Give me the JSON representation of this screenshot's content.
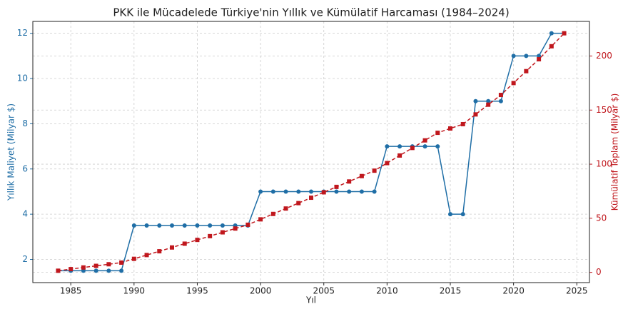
{
  "chart_data": {
    "type": "line",
    "title": "PKK ile Mücadelede Türkiye'nin Yıllık ve Kümülatif Harcaması (1984–2024)",
    "xlabel": "Yıl",
    "ylabel": "Yıllık Maliyet (Milyar $)",
    "y2label": "Kümülatif Toplam (Milyar $)",
    "x": [
      1984,
      1985,
      1986,
      1987,
      1988,
      1989,
      1990,
      1991,
      1992,
      1993,
      1994,
      1995,
      1996,
      1997,
      1998,
      1999,
      2000,
      2001,
      2002,
      2003,
      2004,
      2005,
      2006,
      2007,
      2008,
      2009,
      2010,
      2011,
      2012,
      2013,
      2014,
      2015,
      2016,
      2017,
      2018,
      2019,
      2020,
      2021,
      2022,
      2023,
      2024
    ],
    "series": [
      {
        "color": "#1f6ea6",
        "values": [
          1.5,
          1.5,
          1.5,
          1.5,
          1.5,
          1.5,
          3.5,
          3.5,
          3.5,
          3.5,
          3.5,
          3.5,
          3.5,
          3.5,
          3.5,
          3.5,
          5,
          5,
          5,
          5,
          5,
          5,
          5,
          5,
          5,
          5,
          7,
          7,
          7,
          7,
          7,
          4,
          4,
          9,
          9,
          9,
          11,
          11,
          11,
          12,
          12
        ]
      },
      {
        "color": "#c0171d",
        "axis": "y2",
        "values": [
          1.5,
          3,
          4.5,
          6,
          7.5,
          9,
          12.5,
          16,
          19.5,
          23,
          26.5,
          30,
          33.5,
          37,
          40.5,
          44,
          49,
          54,
          59,
          64,
          69,
          74,
          79,
          84,
          89,
          94,
          101,
          108,
          115,
          122,
          129,
          133,
          137,
          146,
          155,
          164,
          175,
          186,
          197,
          209,
          221
        ]
      }
    ],
    "xlim": [
      1982,
      2026
    ],
    "xticks": [
      1985,
      1990,
      1995,
      2000,
      2005,
      2010,
      2015,
      2020,
      2025
    ],
    "ylim": [
      0.975,
      12.525
    ],
    "yticks": [
      2,
      4,
      6,
      8,
      10,
      12
    ],
    "y2lim": [
      -9.475,
      231.975
    ],
    "y2ticks": [
      0,
      50,
      100,
      150,
      200
    ],
    "grid": true
  }
}
